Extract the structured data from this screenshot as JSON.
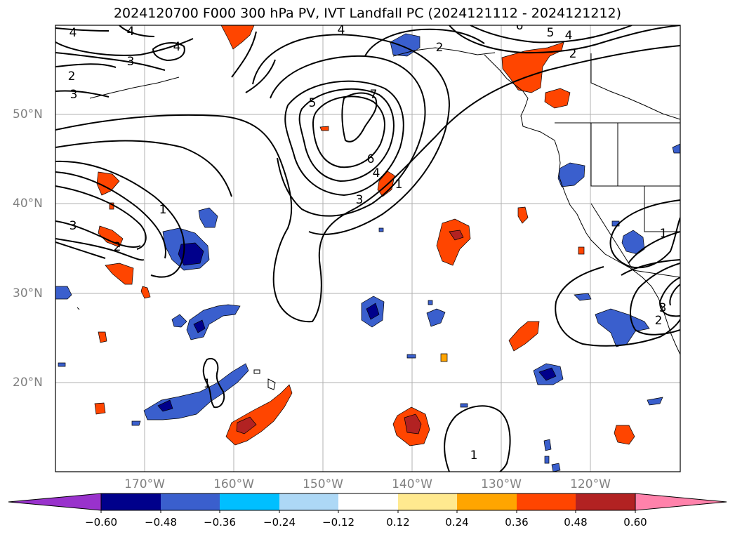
{
  "title": "2024120700 F000 300 hPa PV, IVT Landfall PC (2024121112 - 2024121212)",
  "map": {
    "lat_labels": [
      "50°N",
      "40°N",
      "30°N",
      "20°N"
    ],
    "lon_labels": [
      "170°W",
      "160°W",
      "150°W",
      "140°W",
      "130°W",
      "120°W"
    ],
    "contour_labels": [
      {
        "text": "4"
      },
      {
        "text": "4"
      },
      {
        "text": "3"
      },
      {
        "text": "4"
      },
      {
        "text": "2"
      },
      {
        "text": "3"
      },
      {
        "text": "4"
      },
      {
        "text": "5"
      },
      {
        "text": "7"
      },
      {
        "text": "6"
      },
      {
        "text": "4"
      },
      {
        "text": "3"
      },
      {
        "text": "1"
      },
      {
        "text": "1"
      },
      {
        "text": "3"
      },
      {
        "text": "2"
      },
      {
        "text": "2"
      },
      {
        "text": "6"
      },
      {
        "text": "5"
      },
      {
        "text": "4"
      },
      {
        "text": "2"
      },
      {
        "text": "1"
      },
      {
        "text": "3"
      },
      {
        "text": "2"
      },
      {
        "text": "1"
      },
      {
        "text": "1"
      }
    ]
  },
  "colorbar": {
    "colors": [
      "#9932CC",
      "#00008B",
      "#3A5FCD",
      "#00BFFF",
      "#ADD8F6",
      "#FFFFFF",
      "#FFE98F",
      "#FFA500",
      "#FF4500",
      "#B22222",
      "#FF82AB"
    ],
    "ticks": [
      "−0.60",
      "−0.48",
      "−0.36",
      "−0.24",
      "−0.12",
      "0.12",
      "0.24",
      "0.36",
      "0.48",
      "0.60"
    ]
  }
}
